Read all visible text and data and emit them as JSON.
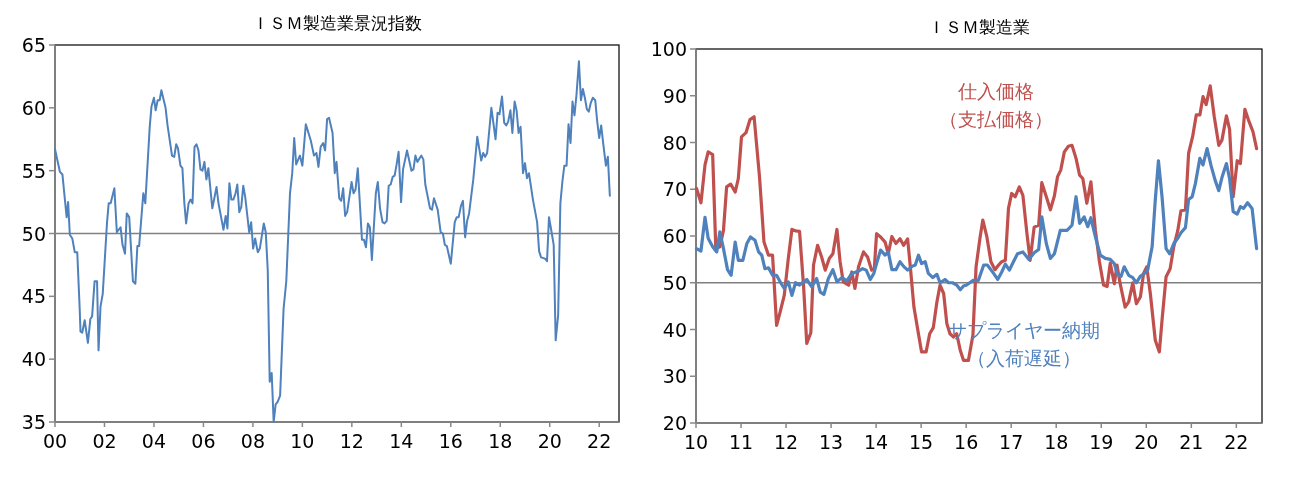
{
  "chart_data": [
    {
      "type": "line",
      "title": "ＩＳＭ製造業景況指数",
      "xlim": [
        2000,
        2022.8
      ],
      "xticks": [
        {
          "value": 2000,
          "label": "00"
        },
        {
          "value": 2002,
          "label": "02"
        },
        {
          "value": 2004,
          "label": "04"
        },
        {
          "value": 2006,
          "label": "06"
        },
        {
          "value": 2008,
          "label": "08"
        },
        {
          "value": 2010,
          "label": "10"
        },
        {
          "value": 2012,
          "label": "12"
        },
        {
          "value": 2014,
          "label": "14"
        },
        {
          "value": 2016,
          "label": "16"
        },
        {
          "value": 2018,
          "label": "18"
        },
        {
          "value": 2020,
          "label": "20"
        },
        {
          "value": 2022,
          "label": "22"
        }
      ],
      "ylim": [
        35,
        65
      ],
      "yticks": [
        35,
        40,
        45,
        50,
        55,
        60,
        65
      ],
      "grid": false,
      "ref_lines": [
        {
          "axis": "y",
          "value": 50,
          "color": "#808080"
        }
      ],
      "series": [
        {
          "color": "#4f81bd",
          "x": [
            2000.0,
            2000.2,
            2000.3,
            2000.47,
            2000.53,
            2000.6,
            2000.7,
            2000.8,
            2000.9,
            2001.0,
            2001.03,
            2001.1,
            2001.2,
            2001.33,
            2001.43,
            2001.5,
            2001.6,
            2001.7,
            2001.76,
            2001.84,
            2001.93,
            2002.1,
            2002.17,
            2002.25,
            2002.4,
            2002.5,
            2002.65,
            2002.73,
            2002.83,
            2002.9,
            2003.0,
            2003.15,
            2003.25,
            2003.33,
            2003.4,
            2003.57,
            2003.65,
            2003.83,
            2003.9,
            2004.0,
            2004.07,
            2004.15,
            2004.23,
            2004.3,
            2004.47,
            2004.55,
            2004.73,
            2004.82,
            2004.9,
            2004.97,
            2005.07,
            2005.15,
            2005.23,
            2005.3,
            2005.4,
            2005.48,
            2005.56,
            2005.64,
            2005.72,
            2005.8,
            2005.88,
            2005.96,
            2006.04,
            2006.12,
            2006.2,
            2006.36,
            2006.53,
            2006.61,
            2006.81,
            2006.9,
            2006.97,
            2007.05,
            2007.13,
            2007.21,
            2007.3,
            2007.37,
            2007.45,
            2007.53,
            2007.61,
            2007.69,
            2007.85,
            2007.93,
            2008.01,
            2008.09,
            2008.2,
            2008.28,
            2008.44,
            2008.52,
            2008.6,
            2008.68,
            2008.76,
            2008.84,
            2008.92,
            2009.0,
            2009.1,
            2009.24,
            2009.35,
            2009.5,
            2009.59,
            2009.67,
            2009.75,
            2009.9,
            2010.0,
            2010.14,
            2010.34,
            2010.47,
            2010.57,
            2010.65,
            2010.74,
            2010.84,
            2010.92,
            2011.0,
            2011.08,
            2011.22,
            2011.31,
            2011.38,
            2011.49,
            2011.57,
            2011.65,
            2011.73,
            2011.81,
            2011.99,
            2012.07,
            2012.15,
            2012.24,
            2012.41,
            2012.49,
            2012.57,
            2012.65,
            2012.73,
            2012.81,
            2012.97,
            2013.05,
            2013.14,
            2013.24,
            2013.32,
            2013.41,
            2013.49,
            2013.57,
            2013.65,
            2013.73,
            2013.81,
            2013.89,
            2013.99,
            2014.07,
            2014.23,
            2014.41,
            2014.49,
            2014.57,
            2014.65,
            2014.81,
            2014.89,
            2014.97,
            2015.16,
            2015.24,
            2015.32,
            2015.47,
            2015.59,
            2015.68,
            2015.76,
            2015.84,
            2016.0,
            2016.16,
            2016.24,
            2016.32,
            2016.41,
            2016.49,
            2016.58,
            2016.66,
            2016.74,
            2016.91,
            2017.07,
            2017.23,
            2017.31,
            2017.39,
            2017.47,
            2017.64,
            2017.81,
            2017.89,
            2017.97,
            2018.07,
            2018.16,
            2018.24,
            2018.32,
            2018.41,
            2018.49,
            2018.58,
            2018.66,
            2018.74,
            2018.82,
            2018.92,
            2019.0,
            2019.08,
            2019.16,
            2019.32,
            2019.49,
            2019.57,
            2019.65,
            2019.81,
            2019.89,
            2019.97,
            2020.05,
            2020.16,
            2020.24,
            2020.34,
            2020.43,
            2020.51,
            2020.59,
            2020.68,
            2020.76,
            2020.84,
            2020.92,
            2021.0,
            2021.08,
            2021.18,
            2021.26,
            2021.34,
            2021.42,
            2021.5,
            2021.58,
            2021.66,
            2021.74,
            2021.84,
            2021.92,
            2022.0,
            2022.08,
            2022.16,
            2022.27,
            2022.35,
            2022.43
          ],
          "values": [
            56.7,
            54.9,
            54.7,
            51.3,
            52.5,
            49.9,
            49.6,
            48.5,
            48.5,
            43.9,
            42.2,
            42.1,
            43.1,
            41.3,
            43.2,
            43.4,
            46.2,
            46.2,
            40.7,
            44.2,
            45.2,
            50.8,
            52.4,
            52.4,
            53.6,
            50.1,
            50.5,
            49.1,
            48.4,
            51.6,
            51.3,
            46.2,
            46.0,
            49.0,
            49.0,
            53.2,
            52.4,
            58.5,
            60.1,
            60.8,
            59.8,
            60.6,
            60.6,
            61.4,
            60.0,
            58.6,
            56.2,
            56.1,
            57.1,
            56.8,
            55.4,
            55.2,
            52.4,
            50.8,
            52.4,
            52.7,
            52.4,
            56.9,
            57.1,
            56.6,
            55.1,
            55.0,
            55.7,
            54.3,
            55.2,
            52.0,
            53.7,
            52.4,
            50.3,
            51.4,
            50.4,
            54.0,
            52.7,
            52.7,
            53.2,
            53.9,
            51.7,
            52.1,
            53.8,
            52.9,
            50.1,
            50.9,
            48.8,
            49.6,
            48.5,
            48.8,
            50.8,
            50.1,
            47.1,
            38.2,
            38.9,
            35.0,
            36.4,
            36.6,
            37.1,
            44.0,
            46.2,
            53.2,
            54.8,
            57.6,
            55.5,
            56.2,
            55.4,
            58.7,
            57.4,
            56.2,
            56.4,
            55.3,
            56.9,
            57.2,
            56.6,
            59.1,
            59.2,
            58.0,
            54.8,
            55.7,
            52.8,
            52.6,
            53.6,
            51.4,
            51.7,
            54.1,
            53.2,
            53.5,
            55.2,
            49.5,
            49.5,
            48.9,
            50.8,
            50.5,
            47.9,
            53.2,
            54.1,
            52.0,
            50.9,
            50.8,
            51.0,
            53.8,
            53.9,
            54.5,
            54.6,
            55.5,
            56.5,
            52.5,
            55.1,
            56.6,
            55.0,
            55.1,
            56.2,
            55.7,
            56.2,
            55.9,
            53.9,
            52.0,
            51.9,
            52.8,
            51.9,
            50.1,
            50.0,
            49.1,
            49.0,
            47.6,
            50.9,
            51.3,
            51.3,
            52.2,
            52.6,
            49.7,
            51.0,
            51.6,
            54.3,
            57.7,
            55.8,
            56.4,
            56.1,
            56.4,
            60.0,
            57.5,
            59.6,
            59.5,
            60.9,
            58.8,
            58.6,
            58.9,
            59.8,
            58.0,
            60.5,
            59.8,
            58.0,
            58.5,
            54.8,
            55.6,
            54.4,
            54.8,
            52.7,
            50.9,
            48.6,
            48.1,
            48.0,
            47.8,
            51.3,
            50.4,
            49.1,
            41.5,
            43.5,
            52.4,
            54.1,
            55.4,
            55.4,
            58.7,
            57.2,
            60.5,
            59.4,
            61.0,
            63.7,
            60.6,
            61.5,
            60.8,
            59.9,
            59.7,
            60.4,
            60.8,
            60.6,
            58.9,
            57.6,
            58.6,
            57.2,
            55.4,
            56.1,
            53.0
          ]
        }
      ]
    },
    {
      "type": "line",
      "title": "ＩＳＭ製造業",
      "xlim": [
        2010,
        2022.57
      ],
      "xticks": [
        {
          "value": 2010,
          "label": "10"
        },
        {
          "value": 2011,
          "label": "11"
        },
        {
          "value": 2012,
          "label": "12"
        },
        {
          "value": 2013,
          "label": "13"
        },
        {
          "value": 2014,
          "label": "14"
        },
        {
          "value": 2015,
          "label": "15"
        },
        {
          "value": 2016,
          "label": "16"
        },
        {
          "value": 2017,
          "label": "17"
        },
        {
          "value": 2018,
          "label": "18"
        },
        {
          "value": 2019,
          "label": "19"
        },
        {
          "value": 2020,
          "label": "20"
        },
        {
          "value": 2021,
          "label": "21"
        },
        {
          "value": 2022,
          "label": "22"
        }
      ],
      "ylim": [
        20,
        100
      ],
      "yticks": [
        20,
        30,
        40,
        50,
        60,
        70,
        80,
        90,
        100
      ],
      "grid": false,
      "ref_lines": [
        {
          "axis": "y",
          "value": 50,
          "color": "#808080"
        }
      ],
      "series": [
        {
          "name": "仕入価格（支払価格）",
          "color": "#c0504d",
          "x": [
            2010.01,
            2010.11,
            2010.2,
            2010.27,
            2010.37,
            2010.44,
            2010.53,
            2010.61,
            2010.68,
            2010.77,
            2010.87,
            2010.94,
            2011.01,
            2011.11,
            2011.2,
            2011.29,
            2011.41,
            2011.51,
            2011.61,
            2011.7,
            2011.79,
            2011.87,
            2011.96,
            2012.05,
            2012.13,
            2012.21,
            2012.3,
            2012.39,
            2012.46,
            2012.55,
            2012.61,
            2012.7,
            2012.79,
            2012.87,
            2012.96,
            2013.04,
            2013.13,
            2013.2,
            2013.27,
            2013.39,
            2013.46,
            2013.53,
            2013.61,
            2013.72,
            2013.81,
            2013.9,
            2013.96,
            2014.01,
            2014.1,
            2014.2,
            2014.27,
            2014.35,
            2014.44,
            2014.53,
            2014.61,
            2014.7,
            2014.76,
            2014.84,
            2014.94,
            2015.01,
            2015.11,
            2015.19,
            2015.27,
            2015.35,
            2015.42,
            2015.5,
            2015.57,
            2015.64,
            2015.72,
            2015.79,
            2015.87,
            2015.94,
            2016.05,
            2016.15,
            2016.22,
            2016.31,
            2016.37,
            2016.46,
            2016.55,
            2016.64,
            2016.72,
            2016.79,
            2016.87,
            2016.94,
            2017.01,
            2017.09,
            2017.18,
            2017.26,
            2017.35,
            2017.42,
            2017.51,
            2017.61,
            2017.68,
            2017.78,
            2017.87,
            2017.96,
            2018.03,
            2018.1,
            2018.18,
            2018.27,
            2018.35,
            2018.44,
            2018.52,
            2018.59,
            2018.68,
            2018.77,
            2018.87,
            2018.96,
            2019.05,
            2019.13,
            2019.2,
            2019.29,
            2019.35,
            2019.42,
            2019.53,
            2019.61,
            2019.7,
            2019.78,
            2019.87,
            2019.94,
            2020.01,
            2020.09,
            2020.2,
            2020.29,
            2020.35,
            2020.44,
            2020.53,
            2020.61,
            2020.7,
            2020.77,
            2020.87,
            2020.94,
            2021.03,
            2021.11,
            2021.19,
            2021.26,
            2021.33,
            2021.42,
            2021.51,
            2021.61,
            2021.68,
            2021.78,
            2021.85,
            2021.93,
            2022.02,
            2022.09,
            2022.19,
            2022.27,
            2022.37,
            2022.45
          ],
          "values": [
            70.2,
            67.1,
            75.2,
            78.0,
            77.4,
            57.3,
            57.7,
            61.2,
            70.5,
            71.1,
            69.4,
            72.3,
            81.2,
            82.1,
            84.9,
            85.5,
            72.7,
            58.7,
            55.9,
            55.9,
            40.9,
            43.8,
            47.3,
            55.2,
            61.4,
            61.1,
            61.0,
            49.1,
            37.0,
            39.3,
            53.8,
            58.0,
            55.5,
            52.7,
            55.2,
            56.2,
            61.4,
            54.5,
            50.2,
            49.5,
            52.3,
            48.8,
            53.4,
            56.6,
            55.5,
            52.7,
            53.0,
            60.5,
            59.8,
            58.7,
            56.2,
            59.9,
            58.4,
            59.4,
            58.0,
            59.4,
            53.4,
            44.8,
            39.1,
            35.2,
            35.2,
            39.1,
            40.4,
            45.9,
            49.5,
            47.7,
            41.3,
            39.1,
            38.4,
            39.1,
            35.5,
            33.4,
            33.4,
            38.8,
            53.4,
            59.8,
            63.4,
            59.8,
            54.5,
            52.8,
            53.8,
            54.5,
            54.8,
            65.9,
            69.1,
            68.4,
            70.5,
            68.7,
            60.5,
            54.8,
            61.9,
            62.3,
            71.4,
            68.4,
            65.6,
            68.6,
            72.7,
            74.1,
            78.0,
            79.2,
            79.4,
            76.6,
            73.0,
            72.3,
            67.0,
            71.6,
            61.2,
            54.5,
            49.5,
            49.2,
            54.2,
            49.8,
            53.8,
            49.8,
            44.8,
            45.9,
            50.0,
            45.5,
            47.0,
            52.0,
            53.4,
            47.7,
            37.7,
            35.2,
            42.0,
            51.3,
            53.0,
            57.7,
            61.2,
            65.4,
            65.6,
            77.7,
            81.3,
            85.9,
            85.9,
            89.8,
            88.1,
            92.1,
            85.5,
            79.4,
            80.5,
            85.7,
            82.8,
            68.4,
            76.1,
            75.5,
            87.1,
            84.8,
            82.3,
            78.7
          ]
        },
        {
          "name": "サプライヤー納期（入荷遅延）",
          "color": "#4f81bd",
          "x": [
            2010.01,
            2010.11,
            2010.2,
            2010.27,
            2010.37,
            2010.46,
            2010.53,
            2010.61,
            2010.7,
            2010.78,
            2010.87,
            2010.94,
            2011.04,
            2011.13,
            2011.21,
            2011.31,
            2011.39,
            2011.46,
            2011.53,
            2011.61,
            2011.7,
            2011.79,
            2011.88,
            2011.96,
            2012.05,
            2012.13,
            2012.21,
            2012.3,
            2012.39,
            2012.46,
            2012.57,
            2012.68,
            2012.76,
            2012.84,
            2012.94,
            2013.04,
            2013.13,
            2013.24,
            2013.35,
            2013.46,
            2013.61,
            2013.7,
            2013.78,
            2013.87,
            2013.95,
            2014.01,
            2014.1,
            2014.2,
            2014.27,
            2014.35,
            2014.44,
            2014.53,
            2014.61,
            2014.7,
            2014.8,
            2014.87,
            2014.94,
            2015.01,
            2015.09,
            2015.16,
            2015.26,
            2015.35,
            2015.42,
            2015.53,
            2015.61,
            2015.7,
            2015.79,
            2015.87,
            2015.94,
            2016.01,
            2016.15,
            2016.27,
            2016.39,
            2016.47,
            2016.61,
            2016.7,
            2016.79,
            2016.87,
            2016.96,
            2017.05,
            2017.14,
            2017.26,
            2017.39,
            2017.51,
            2017.61,
            2017.68,
            2017.78,
            2017.87,
            2017.96,
            2018.09,
            2018.24,
            2018.35,
            2018.44,
            2018.52,
            2018.62,
            2018.7,
            2018.77,
            2018.87,
            2018.98,
            2019.09,
            2019.2,
            2019.29,
            2019.36,
            2019.44,
            2019.51,
            2019.61,
            2019.7,
            2019.78,
            2019.87,
            2019.96,
            2020.03,
            2020.13,
            2020.2,
            2020.27,
            2020.35,
            2020.44,
            2020.52,
            2020.61,
            2020.7,
            2020.77,
            2020.87,
            2020.94,
            2021.02,
            2021.09,
            2021.19,
            2021.26,
            2021.35,
            2021.44,
            2021.53,
            2021.61,
            2021.68,
            2021.78,
            2021.85,
            2021.93,
            2022.02,
            2022.09,
            2022.16,
            2022.25,
            2022.35,
            2022.45
          ],
          "values": [
            57.3,
            56.8,
            64.0,
            59.5,
            57.7,
            56.6,
            60.9,
            57.3,
            52.8,
            51.6,
            58.7,
            54.8,
            54.8,
            58.4,
            59.8,
            59.1,
            56.6,
            55.9,
            53.0,
            53.2,
            51.6,
            51.6,
            50.0,
            48.8,
            50.2,
            47.3,
            50.0,
            49.5,
            50.2,
            50.7,
            49.1,
            50.9,
            48.0,
            47.5,
            50.9,
            52.8,
            50.2,
            51.1,
            50.4,
            52.0,
            52.5,
            53.0,
            52.7,
            50.7,
            52.0,
            54.1,
            57.0,
            55.9,
            56.6,
            52.8,
            52.8,
            54.5,
            53.5,
            52.7,
            53.5,
            53.8,
            55.9,
            54.1,
            54.5,
            52.0,
            51.1,
            51.8,
            50.0,
            50.7,
            50.0,
            50.0,
            49.5,
            48.5,
            49.3,
            49.5,
            50.5,
            50.5,
            53.8,
            53.8,
            52.0,
            50.7,
            52.3,
            54.0,
            52.7,
            54.5,
            56.2,
            56.6,
            55.0,
            56.4,
            57.1,
            64.1,
            58.4,
            55.2,
            56.2,
            61.2,
            61.2,
            62.3,
            68.4,
            62.7,
            64.1,
            62.0,
            63.9,
            59.8,
            55.9,
            55.2,
            55.0,
            54.1,
            51.8,
            51.4,
            53.4,
            51.6,
            51.1,
            50.0,
            51.4,
            52.0,
            52.7,
            57.7,
            67.7,
            76.1,
            68.4,
            57.3,
            56.2,
            58.4,
            59.5,
            60.7,
            61.8,
            67.8,
            68.4,
            71.2,
            76.6,
            75.2,
            78.7,
            75.0,
            71.9,
            69.7,
            72.5,
            75.5,
            72.3,
            65.2,
            64.7,
            66.3,
            65.9,
            67.1,
            65.9,
            57.3
          ]
        }
      ]
    }
  ]
}
